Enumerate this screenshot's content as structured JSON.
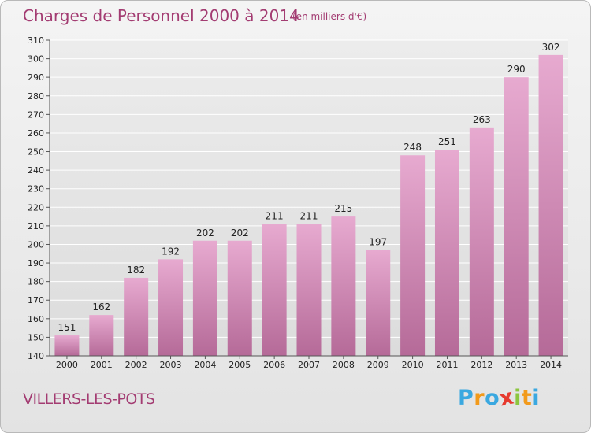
{
  "chart_data": {
    "type": "bar",
    "title": "Charges de Personnel 2000 à 2014",
    "subtitle": "(en milliers d'€)",
    "categories": [
      "2000",
      "2001",
      "2002",
      "2003",
      "2004",
      "2005",
      "2006",
      "2007",
      "2008",
      "2009",
      "2010",
      "2011",
      "2012",
      "2013",
      "2014"
    ],
    "values": [
      151,
      162,
      182,
      192,
      202,
      202,
      211,
      211,
      215,
      197,
      248,
      251,
      263,
      290,
      302
    ],
    "ylim": [
      140,
      310
    ],
    "yticks": [
      140,
      150,
      160,
      170,
      180,
      190,
      200,
      210,
      220,
      230,
      240,
      250,
      260,
      270,
      280,
      290,
      300,
      310
    ],
    "xlabel": "",
    "ylabel": "",
    "grid": true,
    "bar_color": "#c46a9e"
  },
  "location": "VILLERS-LES-POTS",
  "logo": {
    "letters": [
      "P",
      "r",
      "o",
      "x",
      "i",
      "t",
      "i"
    ],
    "colors": [
      "#3aa8e0",
      "#f29a1b",
      "#3aa8e0",
      "#e63a2e",
      "#8cc63f",
      "#f29a1b",
      "#3aa8e0"
    ]
  }
}
